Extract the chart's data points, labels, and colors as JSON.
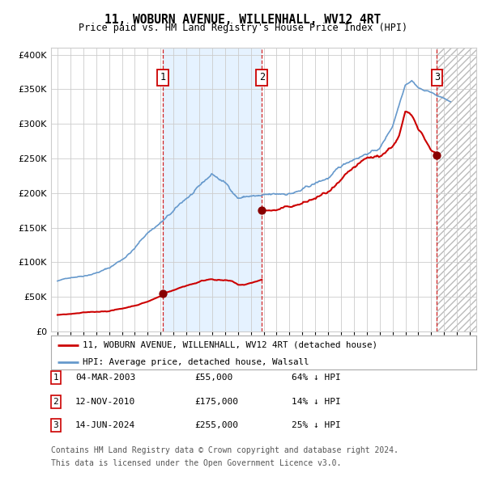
{
  "title": "11, WOBURN AVENUE, WILLENHALL, WV12 4RT",
  "subtitle": "Price paid vs. HM Land Registry's House Price Index (HPI)",
  "sale_prices": [
    55000,
    175000,
    255000
  ],
  "sale_labels": [
    "1",
    "2",
    "3"
  ],
  "sale_hpi_pct": [
    "64% ↓ HPI",
    "14% ↓ HPI",
    "25% ↓ HPI"
  ],
  "sale_date_strs": [
    "04-MAR-2003",
    "12-NOV-2010",
    "14-JUN-2024"
  ],
  "sale_price_strs": [
    "£55,000",
    "£175,000",
    "£255,000"
  ],
  "sale_year_floats": [
    2003.17,
    2010.86,
    2024.45
  ],
  "hpi_line_color": "#6699cc",
  "price_line_color": "#cc0000",
  "dot_color": "#880000",
  "shaded_region": [
    2003.17,
    2010.86
  ],
  "hatch_region_start": 2024.45,
  "ylim": [
    0,
    410000
  ],
  "xlim": [
    1994.5,
    2027.5
  ],
  "yticks": [
    0,
    50000,
    100000,
    150000,
    200000,
    250000,
    300000,
    350000,
    400000
  ],
  "legend_entries": [
    "11, WOBURN AVENUE, WILLENHALL, WV12 4RT (detached house)",
    "HPI: Average price, detached house, Walsall"
  ],
  "footnote1": "Contains HM Land Registry data © Crown copyright and database right 2024.",
  "footnote2": "This data is licensed under the Open Government Licence v3.0.",
  "background_color": "#ffffff",
  "grid_color": "#cccccc",
  "hpi_base_points_x": [
    1995,
    1996,
    1997,
    1998,
    1999,
    2000,
    2001,
    2002,
    2003,
    2004,
    2005,
    2006,
    2007,
    2008,
    2009,
    2010,
    2011,
    2012,
    2013,
    2014,
    2015,
    2016,
    2017,
    2018,
    2019,
    2020,
    2021,
    2022,
    2022.5,
    2023,
    2023.5,
    2024,
    2024.5,
    2025,
    2025.5
  ],
  "hpi_base_points_y": [
    73000,
    78000,
    82000,
    88000,
    95000,
    108000,
    125000,
    148000,
    163000,
    178000,
    196000,
    210000,
    228000,
    215000,
    195000,
    198000,
    196000,
    195000,
    198000,
    202000,
    210000,
    218000,
    232000,
    245000,
    255000,
    262000,
    295000,
    358000,
    365000,
    355000,
    350000,
    348000,
    342000,
    338000,
    332000
  ],
  "prop_seg1_x": [
    1995,
    1996,
    1997,
    1998,
    1999,
    2000,
    2001,
    2002,
    2003,
    2003.17
  ],
  "prop_seg1_y": [
    24000,
    25000,
    26000,
    27000,
    29000,
    32000,
    37000,
    43000,
    51000,
    55000
  ],
  "prop_seg2_x": [
    2003.17,
    2004,
    2005,
    2006,
    2007,
    2008,
    2008.5,
    2009,
    2009.5,
    2010,
    2010.86
  ],
  "prop_seg2_y": [
    55000,
    60000,
    67000,
    73000,
    78000,
    76000,
    74000,
    68000,
    68000,
    70000,
    75000
  ],
  "prop_seg3_x": [
    2010.86,
    2011,
    2012,
    2013,
    2014,
    2015,
    2016,
    2017,
    2018,
    2019,
    2020,
    2021,
    2021.5,
    2022,
    2022.5,
    2023,
    2023.3,
    2023.6,
    2024,
    2024.45
  ],
  "prop_seg3_y": [
    175000,
    175000,
    175000,
    178000,
    182000,
    188000,
    195000,
    205000,
    218000,
    228000,
    232000,
    250000,
    265000,
    300000,
    295000,
    280000,
    275000,
    265000,
    255000,
    255000
  ]
}
